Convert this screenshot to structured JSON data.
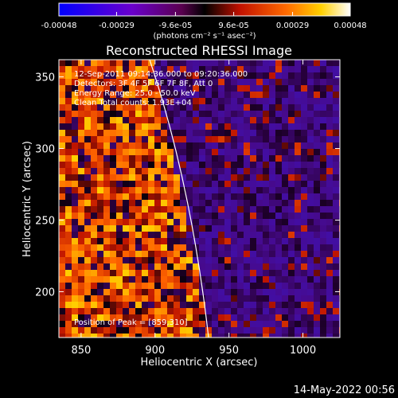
{
  "chart_data": {
    "type": "heatmap",
    "title": "Reconstructed RHESSI Image",
    "xlabel": "Heliocentric X (arcsec)",
    "ylabel": "Heliocentric Y (arcsec)",
    "xlim": [
      835,
      1025
    ],
    "ylim": [
      168,
      362
    ],
    "x_ticks": [
      "850",
      "900",
      "950",
      "1000"
    ],
    "y_ticks": [
      "200",
      "250",
      "300",
      "350"
    ],
    "colorbar": {
      "min": -0.00048,
      "max": 0.00048,
      "tick_labels": [
        "-0.00048",
        "-0.00029",
        "-9.6e-05",
        "9.6e-05",
        "0.00029",
        "0.00048"
      ],
      "unit_label": "(photons cm⁻² s⁻¹ asec⁻²)",
      "colors": [
        "#0000ff",
        "#6a00cc",
        "#7a0060",
        "#000000",
        "#c01000",
        "#ff6a00",
        "#ffd000",
        "#ffffff"
      ]
    },
    "annotations": {
      "time": "12-Sep-2011 09:14:36.000 to 09:20:36.000",
      "detectors": "Detectors: 3F 4F 5F 6F 7F 8F, Att 0",
      "energy": "Energy Range: 25.0 - 50.0 keV",
      "clean": "Clean     Total counts: 1.93E+04",
      "peak": "Position of Peak = [859,310]"
    },
    "peak": {
      "x": 859,
      "y": 310
    },
    "limb": "white solar limb arc",
    "timestamp": "14-May-2022 00:56"
  }
}
